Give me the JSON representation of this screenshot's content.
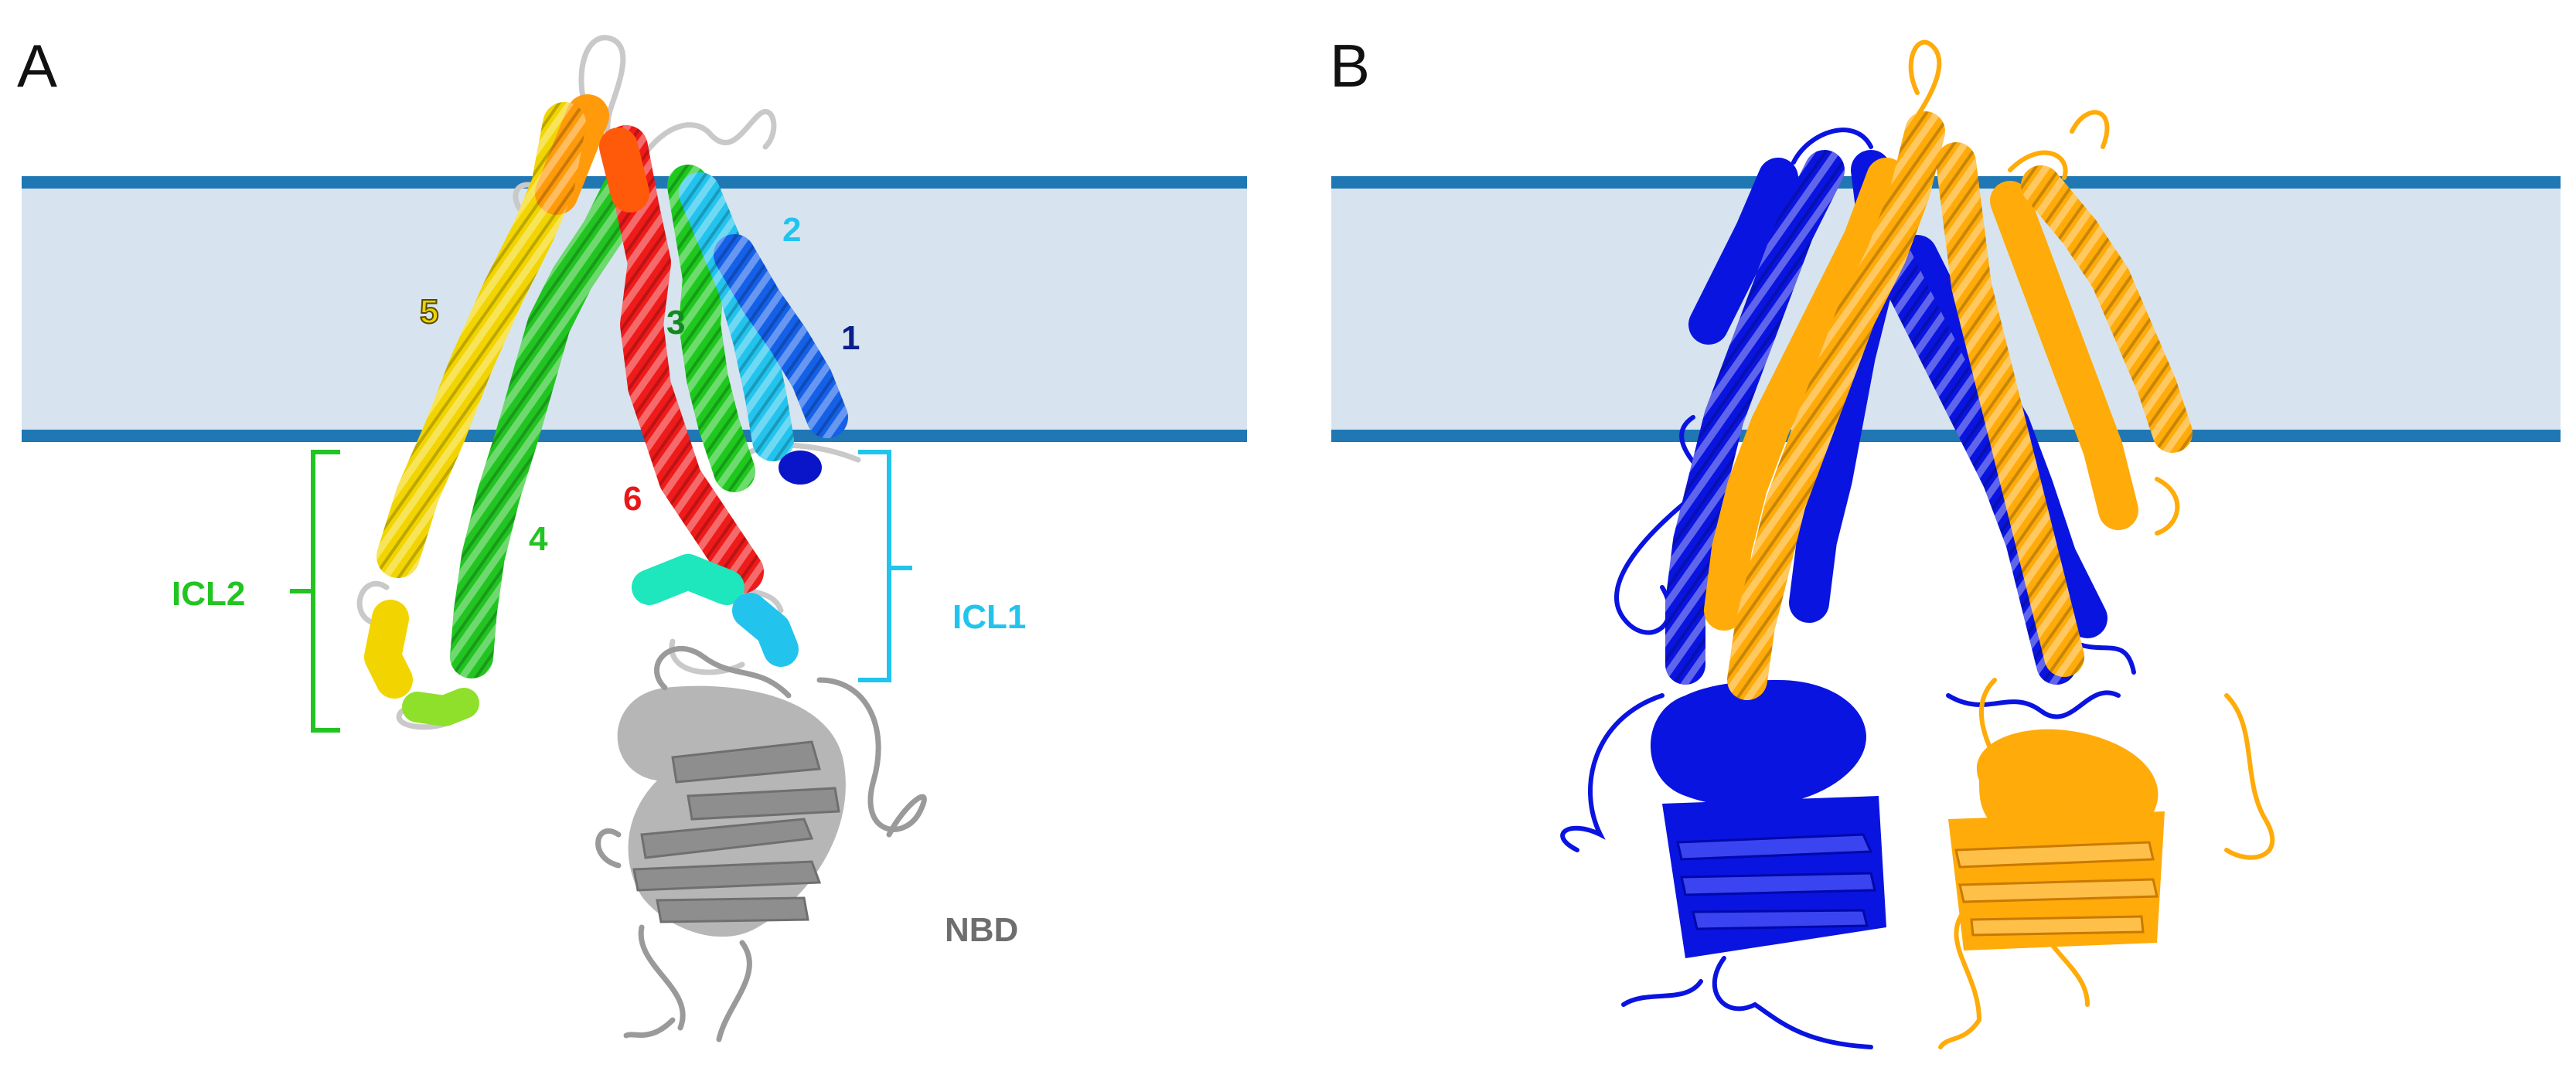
{
  "panels": [
    {
      "letter": "A",
      "helix_labels": [
        {
          "text": "1",
          "color": "#0a1e8c"
        },
        {
          "text": "2",
          "color": "#22c4ee"
        },
        {
          "text": "3",
          "color": "#138a1e"
        },
        {
          "text": "4",
          "color": "#22c422"
        },
        {
          "text": "5",
          "color": "#e8d400"
        },
        {
          "text": "6",
          "color": "#e81818"
        }
      ],
      "region_labels": [
        {
          "text": "ICL2",
          "color": "#22c422"
        },
        {
          "text": "ICL1",
          "color": "#22c4ee"
        },
        {
          "text": "NBD",
          "color": "#6e6e6e"
        }
      ]
    },
    {
      "letter": "B",
      "chain_colors": [
        "#0a14e0",
        "#ffab0a"
      ]
    }
  ],
  "colors": {
    "membrane_fill": "#d7e4ef",
    "membrane_border": "#1f77b4",
    "nbd": "#9a9a9a",
    "loop": "#bdbdbd"
  }
}
